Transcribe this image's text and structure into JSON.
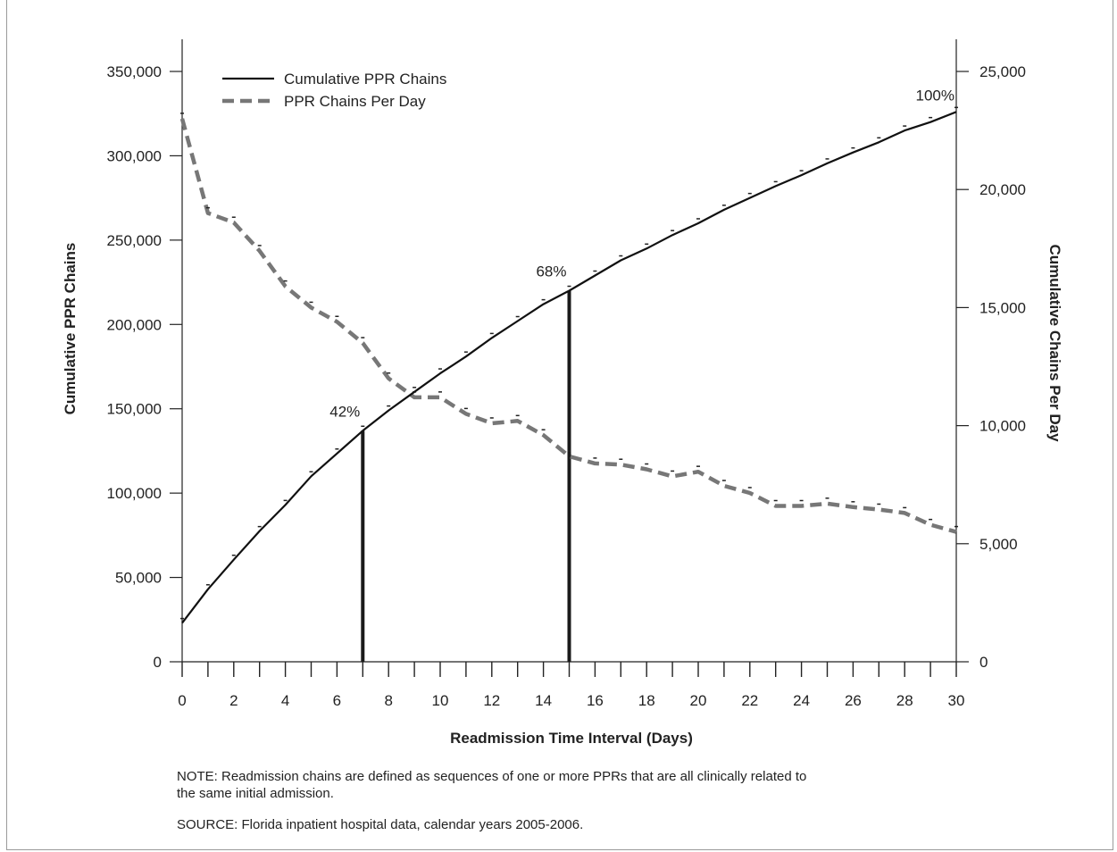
{
  "chart_data": {
    "type": "line",
    "xlabel": "Readmission Time Interval (Days)",
    "ylabel": "Cumulative PPR Chains",
    "y2label": "Cumulative Chains Per Day",
    "xlim": [
      0,
      30
    ],
    "ylim": [
      0,
      350000
    ],
    "y2lim": [
      0,
      25000
    ],
    "x_ticks": [
      0,
      2,
      4,
      6,
      8,
      10,
      12,
      14,
      16,
      18,
      20,
      22,
      24,
      26,
      28,
      30
    ],
    "y_ticks": [
      0,
      50000,
      100000,
      150000,
      200000,
      250000,
      300000,
      350000
    ],
    "y_tick_labels": [
      "0",
      "50,000",
      "100,000",
      "150,000",
      "200,000",
      "250,000",
      "300,000",
      "350,000"
    ],
    "y2_ticks": [
      0,
      5000,
      10000,
      15000,
      20000,
      25000
    ],
    "y2_tick_labels": [
      "0",
      "5,000",
      "10,000",
      "15,000",
      "20,000",
      "25,000"
    ],
    "grid": false,
    "legend_position": "top-left",
    "x": [
      0,
      1,
      2,
      3,
      4,
      5,
      6,
      7,
      8,
      9,
      10,
      11,
      12,
      13,
      14,
      15,
      16,
      17,
      18,
      19,
      20,
      21,
      22,
      23,
      24,
      25,
      26,
      27,
      28,
      29,
      30
    ],
    "series": [
      {
        "name": "Cumulative PPR Chains",
        "axis": "left",
        "style": "solid",
        "color": "#111111",
        "values": [
          23000,
          43000,
          60500,
          77500,
          93000,
          110000,
          123500,
          137000,
          149000,
          160000,
          171000,
          181000,
          192000,
          202000,
          212000,
          220000,
          229000,
          238000,
          245000,
          253000,
          260000,
          268000,
          275000,
          282000,
          288500,
          295500,
          302000,
          308000,
          315000,
          320000,
          326000
        ]
      },
      {
        "name": "PPR Chains Per Day",
        "axis": "right",
        "style": "dashed",
        "color": "#777777",
        "values": [
          23000,
          19000,
          18600,
          17400,
          15900,
          15000,
          14400,
          13500,
          12000,
          11200,
          11200,
          10500,
          10100,
          10200,
          9600,
          8700,
          8400,
          8350,
          8150,
          7850,
          8050,
          7450,
          7150,
          6600,
          6600,
          6700,
          6550,
          6450,
          6300,
          5800,
          5500
        ]
      }
    ],
    "markers": [
      {
        "x": 7,
        "label": "42%"
      },
      {
        "x": 15,
        "label": "68%"
      },
      {
        "x": 30,
        "label": "100%"
      }
    ]
  },
  "notes": {
    "note_line1": "NOTE: Readmission chains are defined as sequences of one or more PPRs that are all clinically related to",
    "note_line2": "the same initial admission.",
    "source": "SOURCE: Florida inpatient hospital data, calendar years 2005-2006."
  }
}
